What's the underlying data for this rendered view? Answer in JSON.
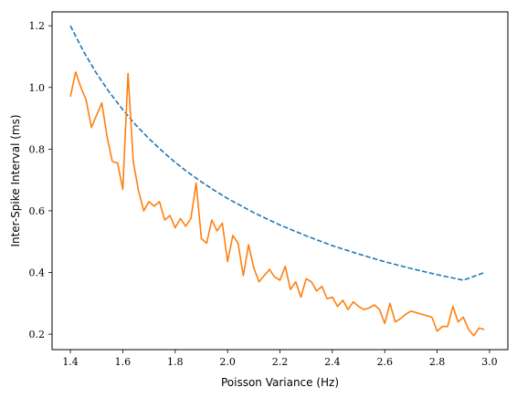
{
  "chart_data": {
    "type": "line",
    "xlabel": "Poisson Variance (Hz)",
    "ylabel": "Inter-Spike Interval (ms)",
    "xlim": [
      1.33,
      3.07
    ],
    "ylim": [
      0.15,
      1.245
    ],
    "xticks": [
      1.4,
      1.6,
      1.8,
      2.0,
      2.2,
      2.4,
      2.6,
      2.8,
      3.0
    ],
    "yticks": [
      0.2,
      0.4,
      0.6,
      0.8,
      1.0,
      1.2
    ],
    "xtick_labels": [
      "1.4",
      "1.6",
      "1.8",
      "2.0",
      "2.2",
      "2.4",
      "2.6",
      "2.8",
      "3.0"
    ],
    "ytick_labels": [
      "0.2",
      "0.4",
      "0.6",
      "0.8",
      "1.0",
      "1.2"
    ],
    "grid": false,
    "series": [
      {
        "style": "dashed",
        "color": "#1f77b4",
        "x": [
          1.4,
          1.45,
          1.5,
          1.55,
          1.6,
          1.65,
          1.7,
          1.75,
          1.8,
          1.85,
          1.9,
          1.95,
          2.0,
          2.1,
          2.2,
          2.3,
          2.4,
          2.5,
          2.6,
          2.7,
          2.8,
          2.9,
          2.98
        ],
        "y": [
          1.2,
          1.117,
          1.045,
          0.983,
          0.928,
          0.878,
          0.834,
          0.794,
          0.757,
          0.724,
          0.694,
          0.666,
          0.64,
          0.594,
          0.554,
          0.519,
          0.487,
          0.46,
          0.435,
          0.413,
          0.393,
          0.375,
          0.4
        ]
      },
      {
        "style": "solid",
        "color": "#ff7f0e",
        "x": [
          1.4,
          1.42,
          1.44,
          1.46,
          1.48,
          1.5,
          1.52,
          1.54,
          1.56,
          1.58,
          1.6,
          1.62,
          1.64,
          1.66,
          1.68,
          1.7,
          1.72,
          1.74,
          1.76,
          1.78,
          1.8,
          1.82,
          1.84,
          1.86,
          1.88,
          1.9,
          1.92,
          1.94,
          1.96,
          1.98,
          2.0,
          2.02,
          2.04,
          2.06,
          2.08,
          2.1,
          2.12,
          2.14,
          2.16,
          2.18,
          2.2,
          2.22,
          2.24,
          2.26,
          2.28,
          2.3,
          2.32,
          2.34,
          2.36,
          2.38,
          2.4,
          2.42,
          2.44,
          2.46,
          2.48,
          2.5,
          2.52,
          2.54,
          2.56,
          2.58,
          2.6,
          2.62,
          2.64,
          2.66,
          2.68,
          2.7,
          2.72,
          2.74,
          2.76,
          2.78,
          2.8,
          2.82,
          2.84,
          2.86,
          2.88,
          2.9,
          2.92,
          2.94,
          2.96,
          2.98
        ],
        "y": [
          0.97,
          1.05,
          1.0,
          0.96,
          0.87,
          0.91,
          0.95,
          0.84,
          0.76,
          0.755,
          0.67,
          1.045,
          0.76,
          0.665,
          0.6,
          0.63,
          0.615,
          0.63,
          0.57,
          0.585,
          0.545,
          0.575,
          0.55,
          0.575,
          0.69,
          0.51,
          0.495,
          0.57,
          0.535,
          0.56,
          0.435,
          0.52,
          0.495,
          0.39,
          0.49,
          0.415,
          0.37,
          0.39,
          0.41,
          0.385,
          0.375,
          0.42,
          0.345,
          0.37,
          0.32,
          0.38,
          0.37,
          0.34,
          0.355,
          0.315,
          0.32,
          0.29,
          0.31,
          0.28,
          0.305,
          0.29,
          0.28,
          0.285,
          0.295,
          0.28,
          0.235,
          0.3,
          0.24,
          0.25,
          0.265,
          0.275,
          0.27,
          0.265,
          0.26,
          0.255,
          0.21,
          0.225,
          0.225,
          0.29,
          0.24,
          0.255,
          0.215,
          0.195,
          0.22,
          0.215
        ]
      }
    ]
  }
}
